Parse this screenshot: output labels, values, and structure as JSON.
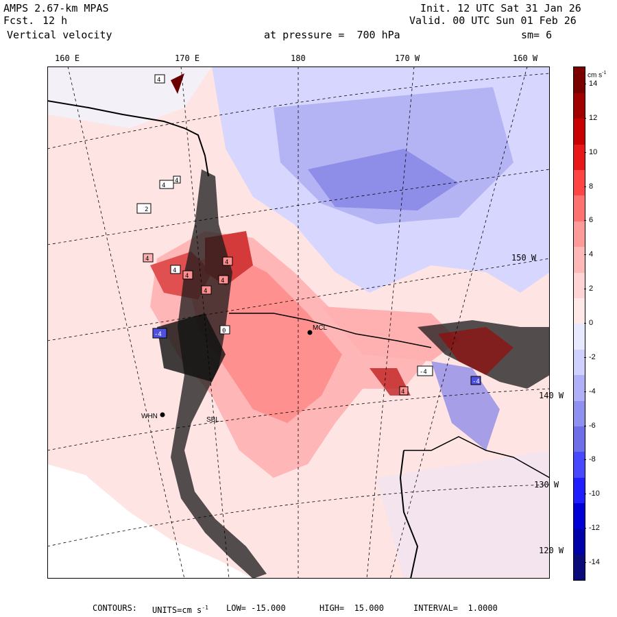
{
  "header": {
    "model": "AMPS 2.67-km MPAS",
    "fcst_label": "Fcst.",
    "fcst_value": "12 h",
    "field": "Vertical velocity",
    "init": "Init. 12 UTC Sat 31 Jan 26",
    "valid": "Valid. 00 UTC Sun 01 Feb 26",
    "pressure": "at pressure =  700 hPa",
    "smoothing": "sm= 6"
  },
  "longitude_labels": [
    "160 E",
    "170 E",
    "180",
    "170 W",
    "160 W"
  ],
  "latitude_labels": [
    "150 W",
    "140 W",
    "130 W",
    "120 W"
  ],
  "stations": [
    {
      "id": "MCM",
      "label": "MCL"
    },
    {
      "id": "WHN",
      "label": "WHN"
    },
    {
      "id": "SBL",
      "label": "SBL"
    }
  ],
  "box_labels": [
    "4",
    "4",
    "2",
    "4",
    "4",
    "4",
    "4",
    "4",
    "4",
    "0",
    "-4",
    "-4",
    "4",
    "4",
    "-4"
  ],
  "colorbar": {
    "units": "cm s",
    "units_exp": "-1",
    "levels": [
      "14",
      "12",
      "10",
      "8",
      "6",
      "4",
      "2",
      "0",
      "-2",
      "-4",
      "-6",
      "-8",
      "-10",
      "-12",
      "-14"
    ],
    "min": -15,
    "max": 15,
    "colors": [
      "#0a0a7a",
      "#0000a8",
      "#0000d6",
      "#1e1eff",
      "#4848ff",
      "#6e6ee8",
      "#9090f0",
      "#b0b0f8",
      "#d0d0ff",
      "#e8e8ff",
      "#ffe8e8",
      "#ffd4d4",
      "#ffb8b8",
      "#ff9a9a",
      "#ff7070",
      "#ff4444",
      "#e81818",
      "#c80000",
      "#a00000",
      "#7a0000"
    ]
  },
  "footer": {
    "contours_label": "CONTOURS:",
    "units": "UNITS=cm s",
    "units_exp": "-1",
    "low": "LOW= -15.000",
    "high": "HIGH=  15.000",
    "interval": "INTERVAL=  1.0000"
  }
}
